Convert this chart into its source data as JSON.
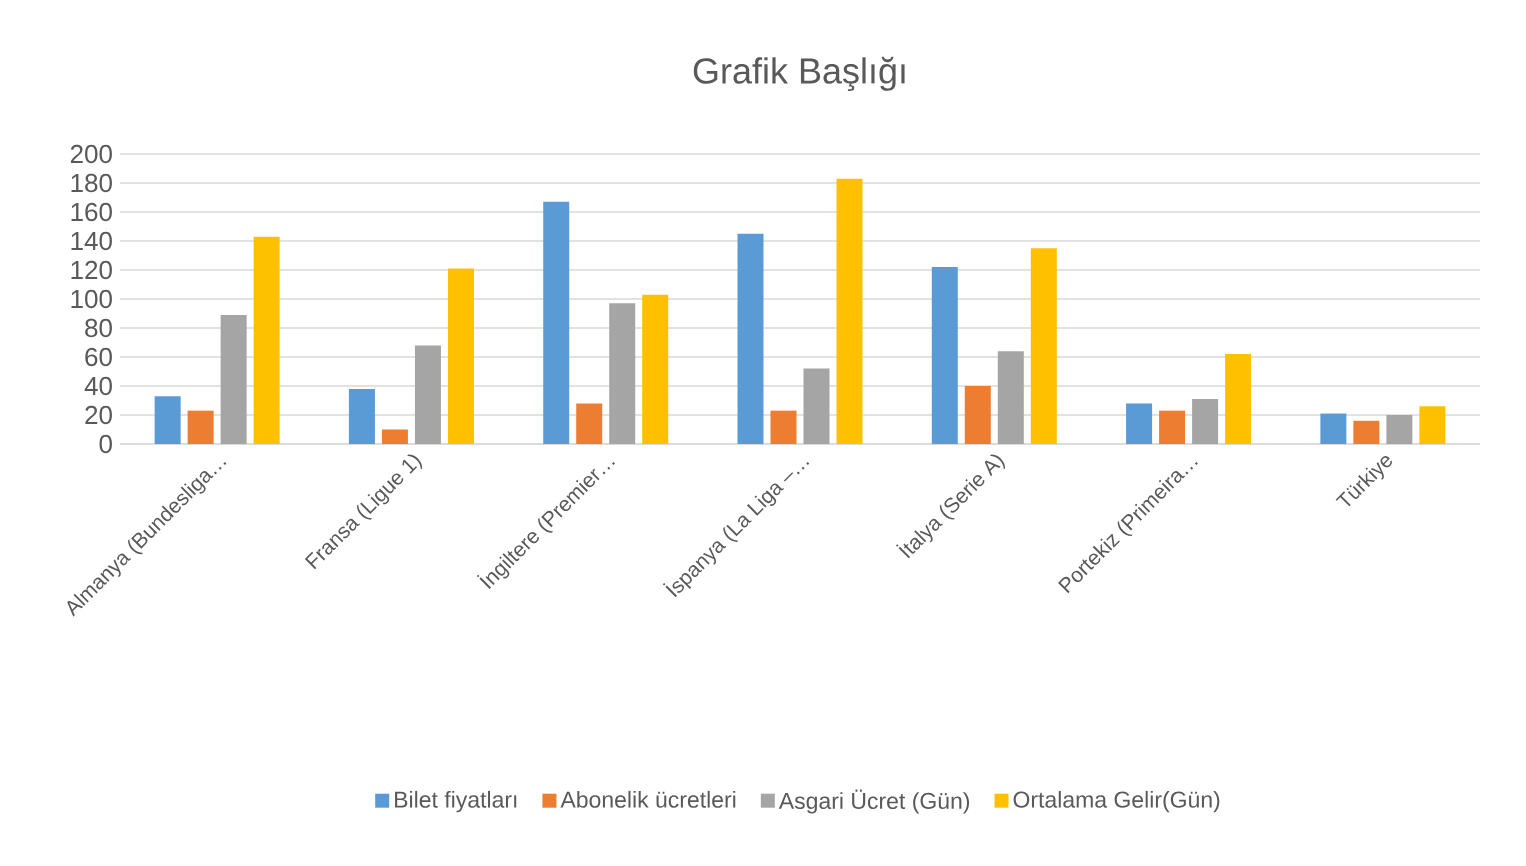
{
  "chart_data": {
    "type": "bar",
    "title": "Grafik Başlığı",
    "categories": [
      "Almanya (Bundesliga…",
      "Fransa (Ligue 1)",
      "İngiltere (Premier…",
      "İspanya (La Liga –…",
      "İtalya (Serie A)",
      "Portekiz (Primeira…",
      "Türkiye"
    ],
    "series": [
      {
        "name": "Bilet fiyatları",
        "color": "#5b9bd5",
        "values": [
          33,
          38,
          167,
          145,
          122,
          28,
          21
        ]
      },
      {
        "name": "Abonelik ücretleri",
        "color": "#ed7d31",
        "values": [
          23,
          10,
          28,
          23,
          40,
          23,
          16
        ]
      },
      {
        "name": "Asgari Ücret (Gün)",
        "color": "#a5a5a5",
        "values": [
          89,
          68,
          97,
          52,
          64,
          31,
          20
        ]
      },
      {
        "name": "Ortalama Gelir(Gün)",
        "color": "#ffc000",
        "values": [
          143,
          121,
          103,
          183,
          135,
          62,
          26
        ]
      }
    ],
    "ylim": [
      0,
      200
    ],
    "yticks": [
      0,
      20,
      40,
      60,
      80,
      100,
      120,
      140,
      160,
      180,
      200
    ],
    "grid": "y",
    "legend": "bottom"
  }
}
